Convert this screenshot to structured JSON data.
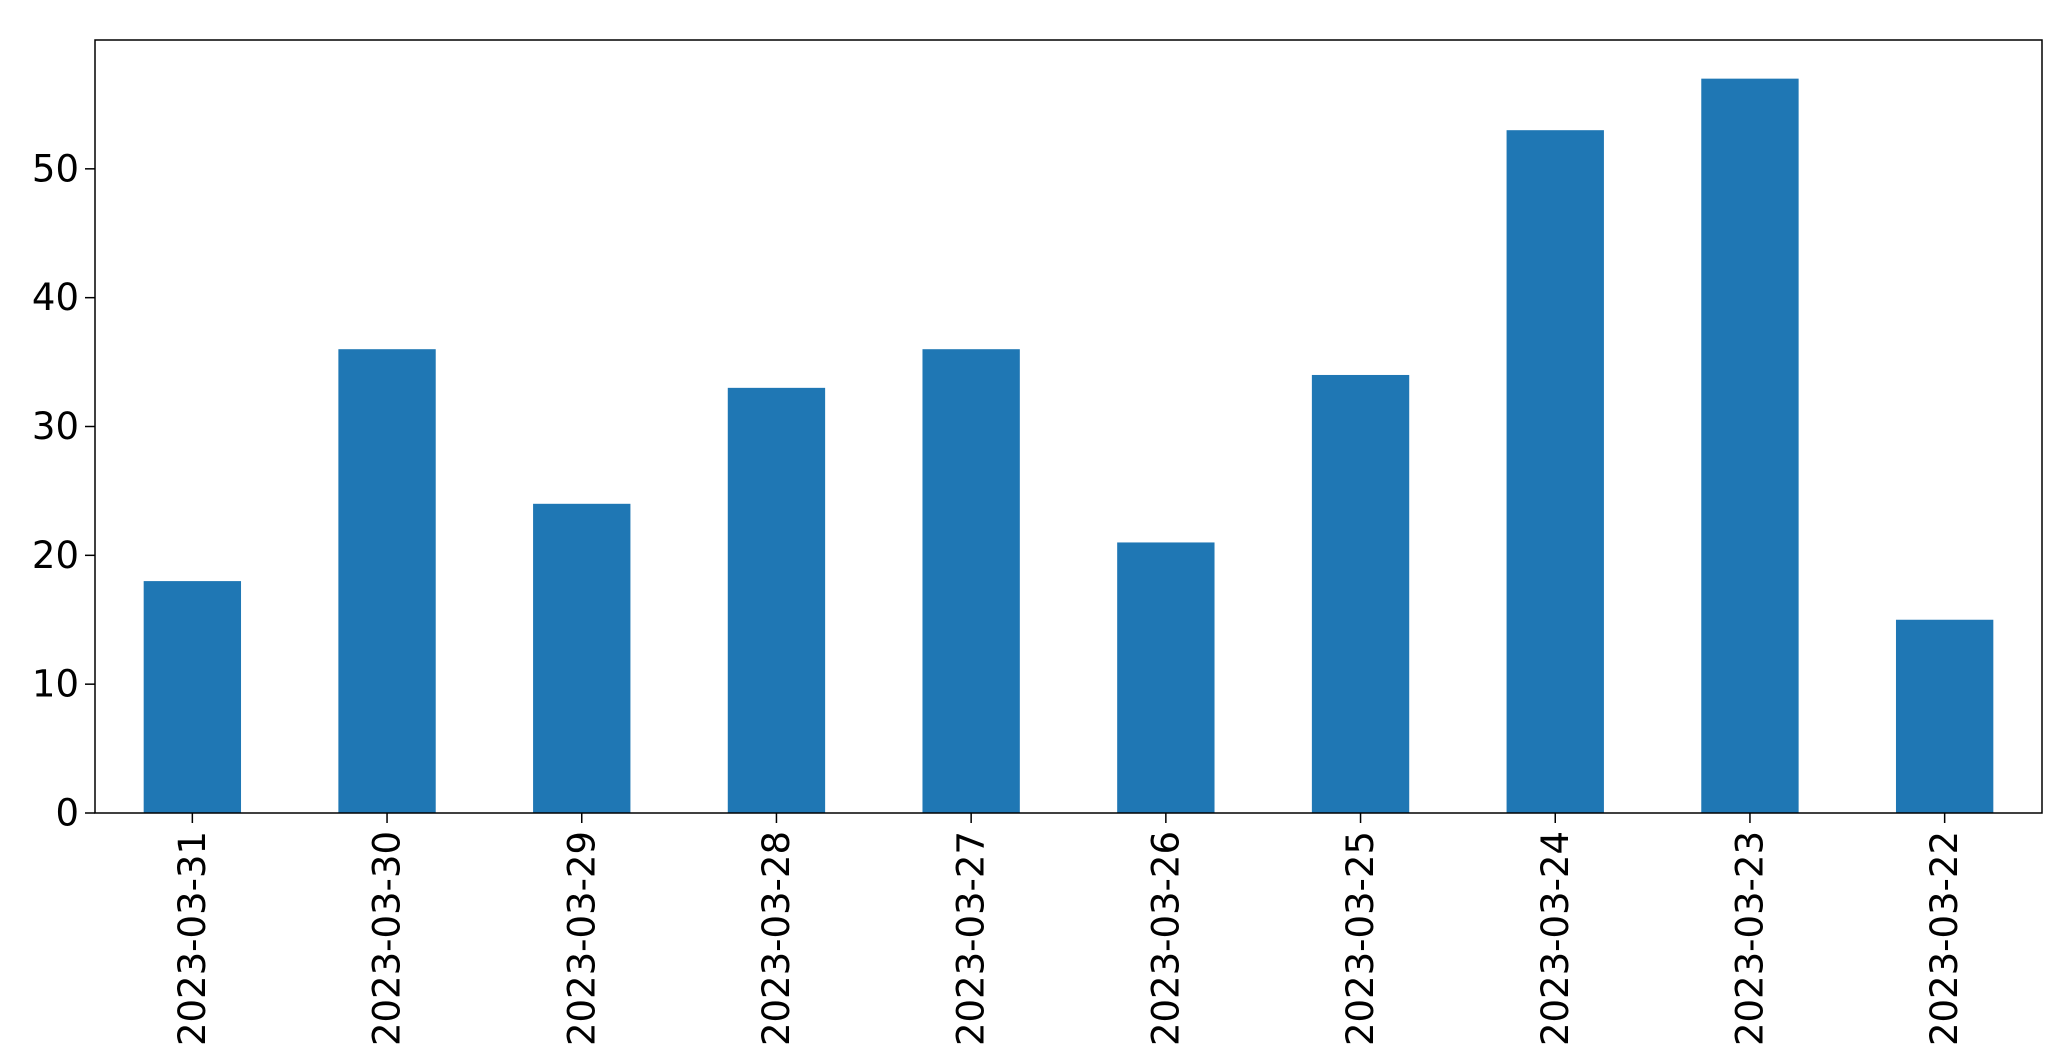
{
  "chart_data": {
    "type": "bar",
    "categories": [
      "2023-03-31",
      "2023-03-30",
      "2023-03-29",
      "2023-03-28",
      "2023-03-27",
      "2023-03-26",
      "2023-03-25",
      "2023-03-24",
      "2023-03-23",
      "2023-03-22"
    ],
    "values": [
      18,
      36,
      24,
      33,
      36,
      21,
      34,
      53,
      57,
      15
    ],
    "title": "",
    "xlabel": "",
    "ylabel": "",
    "ylim": [
      0,
      60
    ],
    "yticks": [
      0,
      10,
      20,
      30,
      40,
      50
    ],
    "grid": false,
    "legend": "none",
    "colors": {
      "bar": "#1f77b4",
      "axes": "#000000",
      "background": "#ffffff"
    }
  }
}
